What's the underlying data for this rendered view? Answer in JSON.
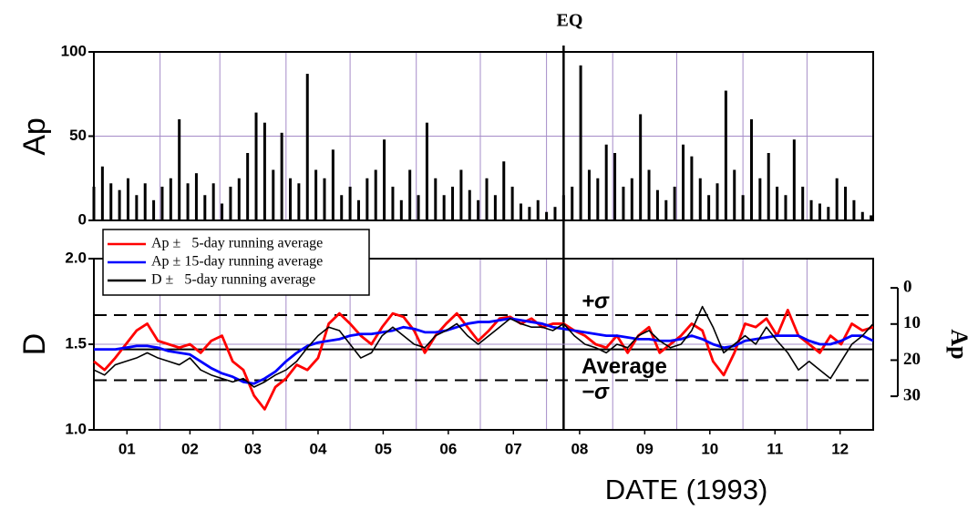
{
  "chart_data": [
    {
      "type": "bar",
      "ylabel": "Ap",
      "event": {
        "label": "EQ",
        "x": 220
      },
      "x": [
        0,
        4,
        8,
        12,
        16,
        20,
        24,
        28,
        32,
        36,
        40,
        44,
        48,
        52,
        56,
        60,
        64,
        68,
        72,
        76,
        80,
        84,
        88,
        92,
        96,
        100,
        104,
        108,
        112,
        116,
        120,
        124,
        128,
        132,
        136,
        140,
        144,
        148,
        152,
        156,
        160,
        164,
        168,
        172,
        176,
        180,
        184,
        188,
        192,
        196,
        200,
        204,
        208,
        212,
        216,
        220,
        224,
        228,
        232,
        236,
        240,
        244,
        248,
        252,
        256,
        260,
        264,
        268,
        272,
        276,
        280,
        284,
        288,
        292,
        296,
        300,
        304,
        308,
        312,
        316,
        320,
        324,
        328,
        332,
        336,
        340,
        344,
        348,
        352,
        356,
        360,
        364
      ],
      "values": [
        20,
        32,
        22,
        18,
        25,
        15,
        22,
        12,
        20,
        25,
        60,
        22,
        28,
        15,
        22,
        10,
        20,
        25,
        40,
        64,
        58,
        30,
        52,
        25,
        22,
        87,
        30,
        25,
        42,
        15,
        20,
        12,
        25,
        30,
        48,
        20,
        12,
        30,
        15,
        58,
        25,
        15,
        20,
        30,
        18,
        12,
        25,
        15,
        35,
        20,
        10,
        8,
        12,
        5,
        8,
        15,
        20,
        92,
        30,
        25,
        45,
        40,
        20,
        25,
        63,
        30,
        18,
        12,
        20,
        45,
        38,
        25,
        15,
        22,
        77,
        30,
        15,
        60,
        25,
        40,
        20,
        15,
        48,
        20,
        12,
        10,
        8,
        25,
        20,
        12,
        5,
        3
      ],
      "color": "#000000",
      "xlim": [
        0,
        365
      ],
      "ylim": [
        0,
        100
      ],
      "yticks": [
        0,
        50,
        100
      ],
      "xminor": [
        0,
        31,
        59,
        90,
        120,
        151,
        181,
        212,
        243,
        273,
        304,
        334,
        365
      ],
      "grid": true
    },
    {
      "type": "line",
      "ylabel": "D",
      "xlabel": "DATE (1993)",
      "x": [
        0,
        5,
        10,
        15,
        20,
        25,
        30,
        35,
        40,
        45,
        50,
        55,
        60,
        65,
        70,
        75,
        80,
        85,
        90,
        95,
        100,
        105,
        110,
        115,
        120,
        125,
        130,
        135,
        140,
        145,
        150,
        155,
        160,
        165,
        170,
        175,
        180,
        185,
        190,
        195,
        200,
        205,
        210,
        215,
        220,
        225,
        230,
        235,
        240,
        245,
        250,
        255,
        260,
        265,
        270,
        275,
        280,
        285,
        290,
        295,
        300,
        305,
        310,
        315,
        320,
        325,
        330,
        335,
        340,
        345,
        350,
        355,
        360,
        365
      ],
      "series": [
        {
          "name": "Ap ±   5-day running average",
          "color": "#ff0000",
          "values": [
            1.4,
            1.35,
            1.42,
            1.5,
            1.58,
            1.62,
            1.52,
            1.5,
            1.48,
            1.5,
            1.45,
            1.52,
            1.55,
            1.4,
            1.35,
            1.2,
            1.12,
            1.25,
            1.3,
            1.38,
            1.35,
            1.42,
            1.62,
            1.68,
            1.62,
            1.55,
            1.5,
            1.6,
            1.68,
            1.66,
            1.58,
            1.45,
            1.55,
            1.62,
            1.68,
            1.6,
            1.52,
            1.58,
            1.65,
            1.66,
            1.62,
            1.65,
            1.6,
            1.62,
            1.62,
            1.58,
            1.55,
            1.5,
            1.48,
            1.55,
            1.45,
            1.55,
            1.6,
            1.45,
            1.5,
            1.55,
            1.62,
            1.58,
            1.4,
            1.32,
            1.45,
            1.62,
            1.6,
            1.65,
            1.55,
            1.7,
            1.55,
            1.5,
            1.45,
            1.55,
            1.5,
            1.62,
            1.58,
            1.6
          ]
        },
        {
          "name": "Ap ± 15-day running average",
          "color": "#0000ff",
          "values": [
            1.47,
            1.47,
            1.47,
            1.48,
            1.49,
            1.49,
            1.48,
            1.46,
            1.45,
            1.44,
            1.4,
            1.36,
            1.33,
            1.31,
            1.28,
            1.27,
            1.3,
            1.34,
            1.4,
            1.45,
            1.49,
            1.51,
            1.52,
            1.53,
            1.55,
            1.56,
            1.56,
            1.57,
            1.58,
            1.6,
            1.59,
            1.57,
            1.57,
            1.58,
            1.6,
            1.62,
            1.63,
            1.63,
            1.64,
            1.65,
            1.64,
            1.63,
            1.62,
            1.6,
            1.59,
            1.58,
            1.57,
            1.56,
            1.55,
            1.55,
            1.54,
            1.53,
            1.53,
            1.52,
            1.52,
            1.53,
            1.55,
            1.53,
            1.5,
            1.48,
            1.49,
            1.52,
            1.53,
            1.54,
            1.55,
            1.55,
            1.55,
            1.52,
            1.5,
            1.5,
            1.52,
            1.55,
            1.55,
            1.52
          ]
        },
        {
          "name": "D ±   5-day running average",
          "color": "#000000",
          "values": [
            1.35,
            1.32,
            1.38,
            1.4,
            1.42,
            1.45,
            1.42,
            1.4,
            1.38,
            1.42,
            1.35,
            1.32,
            1.3,
            1.28,
            1.3,
            1.25,
            1.28,
            1.32,
            1.35,
            1.4,
            1.48,
            1.55,
            1.6,
            1.58,
            1.5,
            1.42,
            1.45,
            1.55,
            1.6,
            1.55,
            1.5,
            1.48,
            1.55,
            1.58,
            1.62,
            1.55,
            1.5,
            1.55,
            1.6,
            1.65,
            1.62,
            1.6,
            1.6,
            1.58,
            1.62,
            1.55,
            1.5,
            1.48,
            1.45,
            1.5,
            1.48,
            1.55,
            1.58,
            1.52,
            1.48,
            1.5,
            1.58,
            1.72,
            1.6,
            1.45,
            1.5,
            1.55,
            1.5,
            1.6,
            1.52,
            1.45,
            1.35,
            1.4,
            1.35,
            1.3,
            1.4,
            1.5,
            1.55,
            1.62
          ]
        }
      ],
      "xlim": [
        0,
        365
      ],
      "ylim": [
        1,
        2
      ],
      "yticks": [
        {
          "value": 1,
          "label": "1.0"
        },
        1.5,
        {
          "value": 2,
          "label": "2.0"
        }
      ],
      "xticks": [
        {
          "value": 15.5,
          "label": "01"
        },
        {
          "value": 45,
          "label": "02"
        },
        {
          "value": 74.5,
          "label": "03"
        },
        {
          "value": 105,
          "label": "04"
        },
        {
          "value": 135.5,
          "label": "05"
        },
        {
          "value": 166,
          "label": "06"
        },
        {
          "value": 196.5,
          "label": "07"
        },
        {
          "value": 227.5,
          "label": "08"
        },
        {
          "value": 258,
          "label": "09"
        },
        {
          "value": 288.5,
          "label": "10"
        },
        {
          "value": 319,
          "label": "11"
        },
        {
          "value": 349.5,
          "label": "12"
        }
      ],
      "xminor": [
        0,
        31,
        59,
        90,
        120,
        151,
        181,
        212,
        243,
        273,
        304,
        334,
        365
      ],
      "hlines": [
        {
          "value": 1.67,
          "label": "+σ",
          "style": "dashed"
        },
        {
          "value": 1.47,
          "label": "Average",
          "style": "solid"
        },
        {
          "value": 1.29,
          "label": "−σ",
          "style": "dashed"
        }
      ],
      "y2label": "Ap",
      "y2lim": [
        39.3,
        -8.1
      ],
      "y2ticks": [
        0,
        10,
        20,
        30
      ],
      "legend": "upper left",
      "grid": true
    }
  ]
}
